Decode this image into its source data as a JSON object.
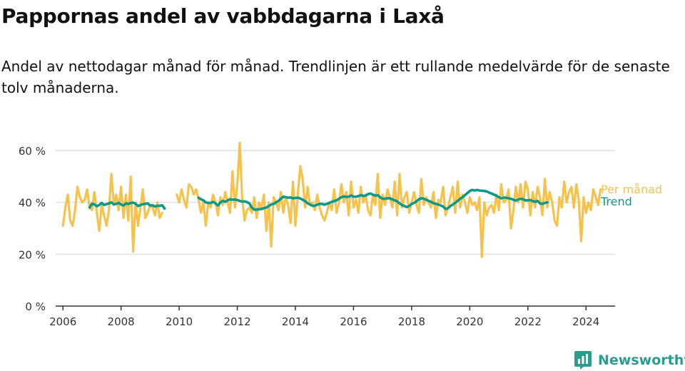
{
  "title": "Pappornas andel av vabbdagarna i Laxå",
  "subtitle": "Andel av nettodagar månad för månad. Trendlinjen är ett rullande medelvärde för de senaste tolv månaderna.",
  "brand": {
    "name": "Newsworthy",
    "logo_icon": "newsworthy-logo-icon"
  },
  "colors": {
    "monthly": "#f7c24c",
    "trend": "#0e9a8a",
    "grid": "#d9d9d9",
    "axis": "#333333",
    "text": "#333333"
  },
  "chart_data": {
    "type": "line",
    "title": "Pappornas andel av vabbdagarna i Laxå",
    "xlabel": "",
    "ylabel": "",
    "xlim": [
      2005.75,
      2025.0
    ],
    "ylim": [
      0,
      60
    ],
    "y_ticks": [
      0,
      20,
      40,
      60
    ],
    "y_tick_labels": [
      "0 %",
      "20 %",
      "40 %",
      "60 %"
    ],
    "x_ticks": [
      2006,
      2008,
      2010,
      2012,
      2014,
      2016,
      2018,
      2020,
      2022,
      2024
    ],
    "x_tick_labels": [
      "2006",
      "2008",
      "2010",
      "2012",
      "2014",
      "2016",
      "2018",
      "2020",
      "2022",
      "2024"
    ],
    "grid": "horizontal",
    "legend": "direct labels at right end of lines",
    "series": [
      {
        "name": "Per månad",
        "segments": [
          {
            "start": 2006.0,
            "values": [
              31,
              38,
              43,
              33,
              31,
              37,
              46,
              42,
              40,
              41,
              45,
              38,
              37,
              44,
              36,
              29,
              39,
              35,
              31,
              37,
              51,
              39,
              43,
              37,
              46,
              34,
              43,
              33,
              50,
              21,
              40,
              31,
              38,
              45,
              34,
              36,
              39,
              38,
              35,
              40,
              34,
              36
            ]
          },
          {
            "start": 2009.917,
            "values": [
              43,
              40,
              45,
              41,
              38,
              47,
              46,
              43,
              45,
              41,
              36,
              40,
              31,
              40,
              38,
              43,
              40,
              35,
              42,
              39,
              44,
              40,
              36,
              52,
              38,
              47,
              63,
              42,
              33,
              37,
              38,
              36,
              42,
              34,
              40,
              38,
              43,
              29,
              40,
              23,
              42,
              40,
              37,
              44,
              36,
              42,
              39,
              32,
              48,
              31,
              43,
              54,
              49,
              38,
              46,
              39,
              40,
              37,
              43,
              38,
              35,
              33,
              36,
              40,
              37,
              45,
              36,
              40,
              47,
              40,
              44,
              35,
              48,
              38,
              41,
              36,
              46,
              40,
              43,
              37,
              35,
              43,
              39,
              51,
              34,
              43,
              39,
              45,
              42,
              38,
              48,
              35,
              51,
              38,
              42,
              44,
              36,
              40,
              44,
              39,
              36,
              49,
              39,
              42,
              40,
              38,
              44,
              34,
              41,
              40,
              46,
              35,
              38,
              42,
              46,
              36,
              48,
              38,
              43,
              40,
              36,
              42,
              39,
              40,
              37,
              42,
              19,
              40,
              35,
              38,
              39,
              36,
              43,
              37,
              47,
              40,
              41,
              45,
              30,
              37,
              46,
              40,
              47,
              38,
              48,
              45,
              35,
              44,
              38,
              46,
              42,
              35,
              49,
              38,
              44,
              40,
              33,
              31,
              42,
              38,
              48,
              40,
              44,
              46,
              38,
              47,
              41,
              25,
              42,
              36,
              40,
              37,
              45,
              42,
              39,
              45
            ]
          }
        ]
      },
      {
        "name": "Trend",
        "segments": [
          {
            "start": 2006.917,
            "values": [
              38,
              39.5,
              39.2,
              38.5,
              39,
              39.8,
              39,
              39.3,
              39.6,
              40,
              39.2,
              39.4,
              39.8,
              39.2,
              38.8,
              39.6,
              39.4,
              39.8,
              39.9,
              39.5,
              38.6,
              39,
              39.3,
              39.4,
              39.6,
              38.8,
              38.9,
              38.4,
              38.7,
              38.7,
              38.9,
              37.6
            ]
          },
          {
            "start": 2010.667,
            "values": [
              41.8,
              41.2,
              40.8,
              40,
              39.8,
              39.8,
              40.2,
              39.6,
              38.8,
              40,
              40.6,
              40.2,
              40.8,
              41.2,
              41,
              41.1,
              40.9,
              40.6,
              40.3,
              40.4,
              40.1,
              39.6,
              38,
              37.2,
              37.2,
              37.4,
              37.4,
              37.8,
              38,
              38.6,
              39.2,
              39.4,
              40,
              40.6,
              41.4,
              42.2,
              42,
              41.8,
              41.9,
              41.6,
              41.7,
              41.8,
              41.5,
              41,
              40.5,
              39.7,
              39.2,
              38.7,
              38.7,
              39.1,
              39.4,
              39.4,
              39.1,
              39.4,
              39.8,
              40.2,
              40.5,
              40.8,
              41.4,
              42,
              42.3,
              42.1,
              42.2,
              42.7,
              42.2,
              42.2,
              42.4,
              42.8,
              42.5,
              42.6,
              43.2,
              43.4,
              43,
              42.6,
              42.8,
              42,
              41.4,
              41.4,
              41.6,
              41.6,
              41.2,
              40.8,
              40.4,
              39.6,
              39,
              38.6,
              38.2,
              38.6,
              39.4,
              39.8,
              40.4,
              41.2,
              41.6,
              41.4,
              41,
              40.6,
              40.2,
              39.7,
              39.4,
              39.2,
              38.8,
              38.4,
              37.5,
              37.7,
              38.6,
              39.2,
              39.8,
              40.6,
              41.4,
              42,
              42.8,
              43.6,
              44.4,
              44.8,
              44.6,
              44.8,
              44.6,
              44.5,
              44.4,
              44.2,
              43.8,
              43.4,
              43,
              42.6,
              42,
              41.6,
              41.8,
              41.8,
              41.6,
              41.4,
              41,
              40.7,
              41.1,
              41.4,
              41.2,
              40.8,
              40.8,
              40.9,
              40.5,
              40.2,
              40.6,
              39.6,
              39.4,
              39.8,
              40
            ]
          }
        ]
      }
    ]
  }
}
